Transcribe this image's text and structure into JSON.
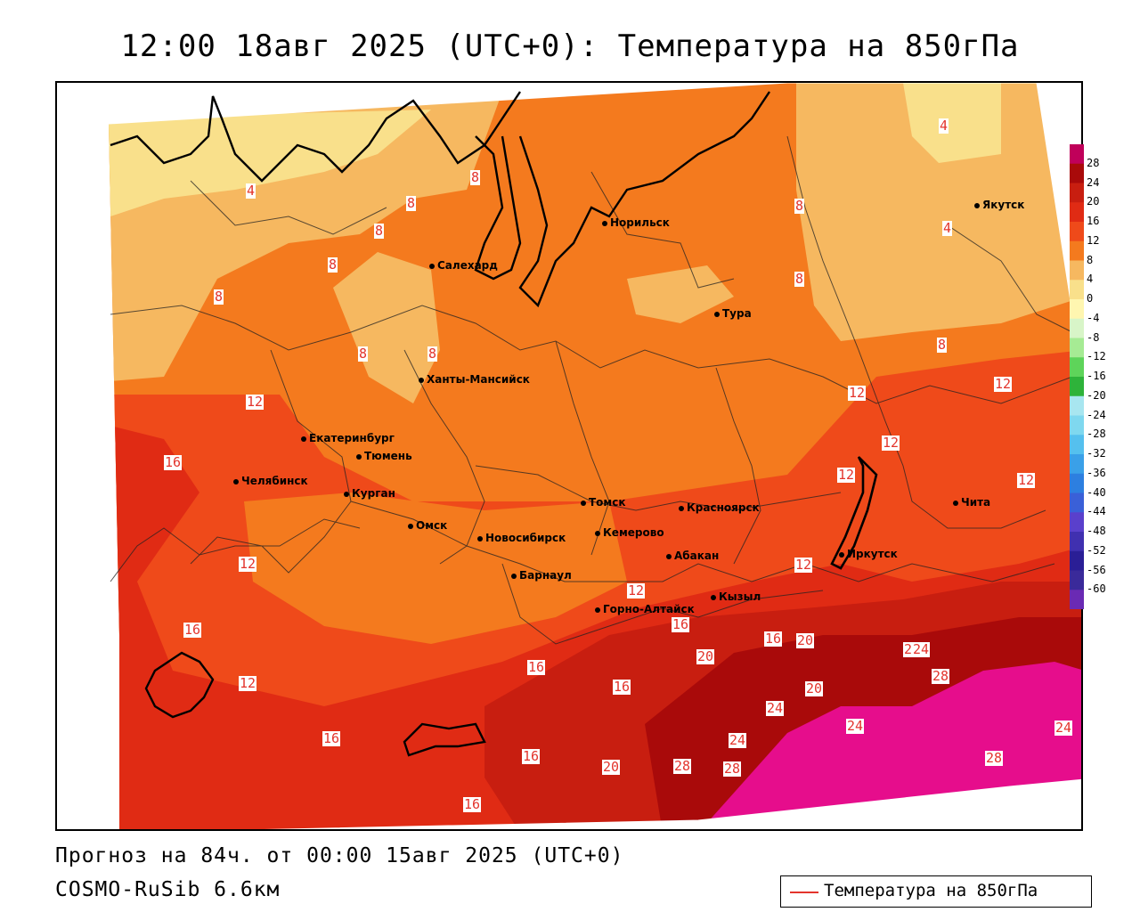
{
  "title": "12:00 18авг 2025 (UTC+0): Температура на 850гПа",
  "footer": {
    "forecast": "Прогноз на 84ч. от 00:00 15авг 2025 (UTC+0)",
    "model": "COSMO-RuSib 6.6км"
  },
  "legend": {
    "label": "Температура на 850гПа",
    "line_color": "#e3342c"
  },
  "colors": {
    "band_0_4": "#f9e08b",
    "band_4_8": "#f6b860",
    "band_8_12": "#f47a1e",
    "band_12_16": "#ef4a1a",
    "band_16_20": "#e02b14",
    "band_20_24": "#c81e10",
    "band_24_28": "#a90a0a",
    "band_28_plus": "#e60d8c",
    "contour": "#e3342c",
    "coast": "#000000"
  },
  "colorbar": {
    "ticks": [
      "28",
      "24",
      "20",
      "16",
      "12",
      "8",
      "4",
      "0",
      "-4",
      "-8",
      "-12",
      "-16",
      "-20",
      "-24",
      "-28",
      "-32",
      "-36",
      "-40",
      "-44",
      "-48",
      "-52",
      "-56",
      "-60"
    ],
    "colors": [
      "#c0005a",
      "#a90a0a",
      "#c81e10",
      "#e02b14",
      "#ef4a1a",
      "#f47a1e",
      "#f6b860",
      "#f9e08b",
      "#fff6b0",
      "#d8f5c8",
      "#a6eb94",
      "#5ed45a",
      "#2eb33a",
      "#a8e6f0",
      "#7fd8ef",
      "#55c0ee",
      "#3aa0e8",
      "#2d7fe0",
      "#3a60d8",
      "#5a40cc",
      "#4030b0",
      "#2a1e96",
      "#3a2a9a",
      "#6a2ab4"
    ]
  },
  "cities": [
    {
      "name": "Норильск"
    },
    {
      "name": "Якутск"
    },
    {
      "name": "Салехард"
    },
    {
      "name": "Тура"
    },
    {
      "name": "Ханты-Мансийск"
    },
    {
      "name": "Екатеринбург"
    },
    {
      "name": "Тюмень"
    },
    {
      "name": "Челябинск"
    },
    {
      "name": "Курган"
    },
    {
      "name": "Омск"
    },
    {
      "name": "Томск"
    },
    {
      "name": "Красноярск"
    },
    {
      "name": "Новосибирск"
    },
    {
      "name": "Кемерово"
    },
    {
      "name": "Абакан"
    },
    {
      "name": "Иркутск"
    },
    {
      "name": "Чита"
    },
    {
      "name": "Барнаул"
    },
    {
      "name": "Горно-Алтайск"
    },
    {
      "name": "Кызыл"
    }
  ],
  "contour_labels": [
    "4",
    "8",
    "8",
    "8",
    "8",
    "8",
    "8",
    "8",
    "8",
    "8",
    "4",
    "4",
    "8",
    "12",
    "12",
    "12",
    "12",
    "12",
    "16",
    "12",
    "12",
    "12",
    "12",
    "16",
    "16",
    "16",
    "16",
    "16",
    "16",
    "20",
    "20",
    "20",
    "16",
    "20",
    "24",
    "28",
    "24",
    "24",
    "28",
    "24",
    "24",
    "28",
    "28",
    "16",
    "20",
    "12"
  ]
}
